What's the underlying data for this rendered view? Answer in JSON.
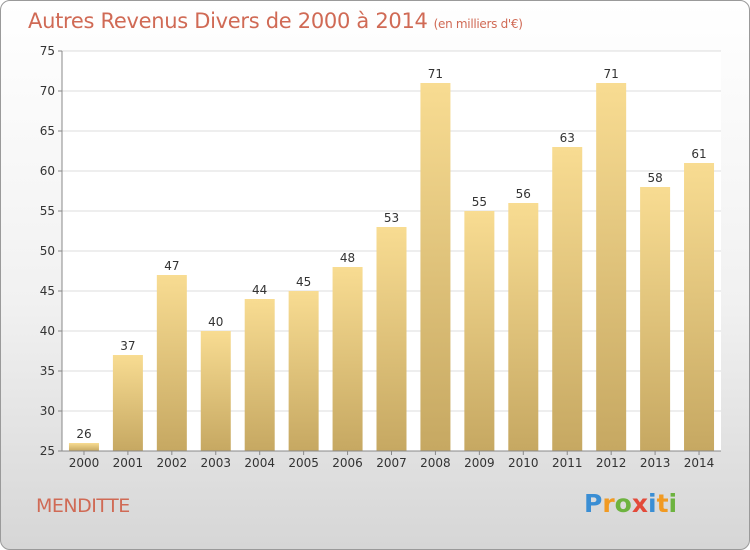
{
  "title": "Autres Revenus Divers de 2000 à 2014",
  "subtitle": "(en milliers d'€)",
  "commune": "MENDITTE",
  "logo": {
    "letters": [
      "P",
      "r",
      "o",
      "x",
      "i",
      "t",
      "i"
    ],
    "colors": [
      "#3a8ed4",
      "#f19a22",
      "#6db33f",
      "#e34a3a",
      "#3a8ed4",
      "#f19a22",
      "#6db33f"
    ]
  },
  "chart_data": {
    "type": "bar",
    "categories": [
      "2000",
      "2001",
      "2002",
      "2003",
      "2004",
      "2005",
      "2006",
      "2007",
      "2008",
      "2009",
      "2010",
      "2011",
      "2012",
      "2013",
      "2014"
    ],
    "values": [
      26,
      37,
      47,
      40,
      44,
      45,
      48,
      53,
      71,
      55,
      56,
      63,
      71,
      58,
      61
    ],
    "ylim": [
      25,
      75
    ],
    "yticks": [
      25,
      30,
      35,
      40,
      45,
      50,
      55,
      60,
      65,
      70,
      75
    ],
    "grid": true,
    "bar_color_top": "#f8dc92",
    "bar_color_bottom": "#c6a862",
    "text_color": "#d06a55"
  }
}
